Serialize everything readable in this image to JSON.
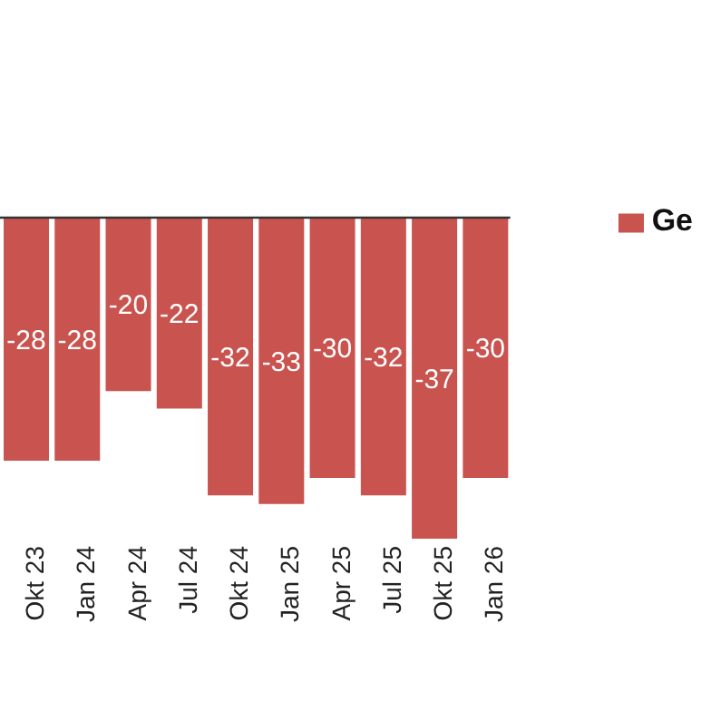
{
  "chart_data": {
    "type": "bar",
    "categories": [
      "Okt 23",
      "Jan 24",
      "Apr 24",
      "Jul 24",
      "Okt 24",
      "Jan 25",
      "Apr 25",
      "Jul 25",
      "Okt 25",
      "Jan 26"
    ],
    "series": [
      {
        "name": "Ge",
        "color": "#c9534f",
        "values": [
          -28,
          -28,
          -20,
          -22,
          -32,
          -33,
          -30,
          -32,
          -37,
          -30
        ]
      }
    ],
    "data_labels": true,
    "legend": "right",
    "grid": false
  }
}
